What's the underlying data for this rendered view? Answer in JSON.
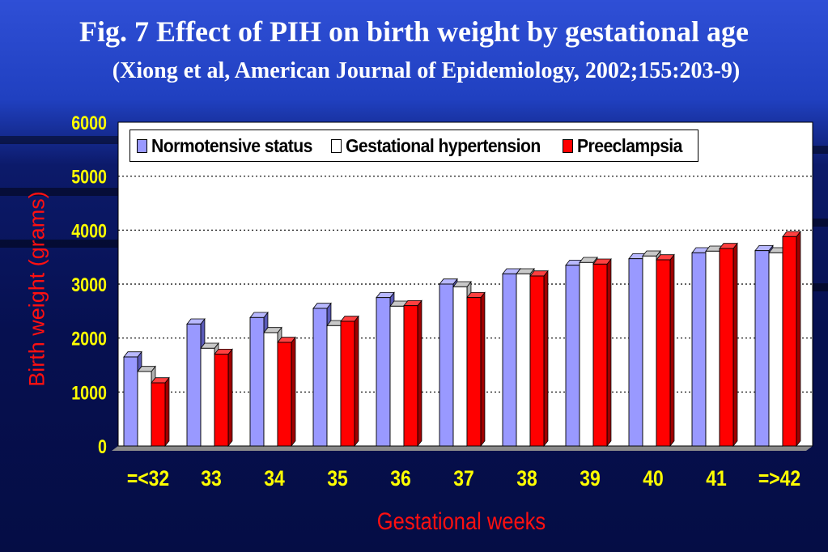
{
  "title": "Fig. 7  Effect of PIH on birth weight by gestational age",
  "subtitle": "(Xiong et al, American Journal of Epidemiology, 2002;155:203-9)",
  "chart_data": {
    "type": "bar",
    "title": "Fig. 7  Effect of PIH on birth weight by gestational age",
    "xlabel": "Gestational weeks",
    "ylabel": "Birth weight (grams)",
    "ylim": [
      0,
      6000
    ],
    "yticks": [
      "0",
      "1000",
      "2000",
      "3000",
      "4000",
      "5000",
      "6000"
    ],
    "grid": true,
    "legend_position": "top",
    "categories": [
      "=<32",
      "33",
      "34",
      "35",
      "36",
      "37",
      "38",
      "39",
      "40",
      "41",
      "=>42"
    ],
    "series": [
      {
        "name": "Normotensive status",
        "color": "#9999ff",
        "values": [
          1650,
          2260,
          2380,
          2550,
          2750,
          3000,
          3190,
          3350,
          3470,
          3580,
          3620
        ]
      },
      {
        "name": "Gestational hypertension",
        "color": "#ffffff",
        "values": [
          1380,
          1810,
          2100,
          2230,
          2590,
          2950,
          3190,
          3400,
          3520,
          3610,
          3580
        ]
      },
      {
        "name": "Preeclampsia",
        "color": "#ff0000",
        "values": [
          1170,
          1700,
          1920,
          2310,
          2600,
          2750,
          3150,
          3370,
          3450,
          3660,
          3880
        ]
      }
    ]
  }
}
